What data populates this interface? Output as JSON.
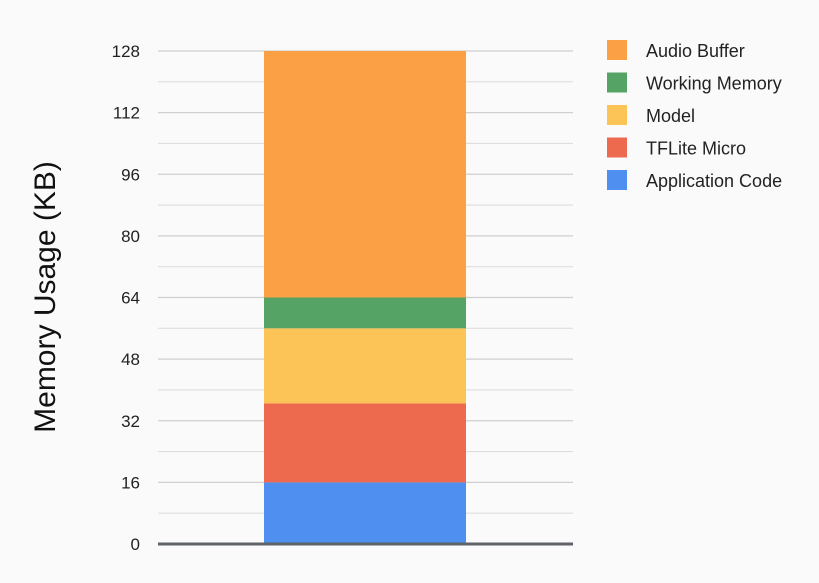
{
  "chart_data": {
    "type": "bar",
    "stacked": true,
    "title": "",
    "xlabel": "",
    "ylabel": "Memory Usage (KB)",
    "ylim": [
      0,
      128
    ],
    "yticks": [
      0,
      16,
      32,
      48,
      64,
      80,
      96,
      112,
      128
    ],
    "grid": true,
    "legend_position": "top-right",
    "categories": [
      ""
    ],
    "series": [
      {
        "name": "Application Code",
        "values": [
          16
        ],
        "color": "#4e8ff0"
      },
      {
        "name": "TFLite Micro",
        "values": [
          20.5
        ],
        "color": "#ee6a4f"
      },
      {
        "name": "Model",
        "values": [
          19.5
        ],
        "color": "#fcc356"
      },
      {
        "name": "Working Memory",
        "values": [
          8
        ],
        "color": "#55a465"
      },
      {
        "name": "Audio Buffer",
        "values": [
          64
        ],
        "color": "#fba044"
      }
    ],
    "legend_order": [
      "Audio Buffer",
      "Working Memory",
      "Model",
      "TFLite Micro",
      "Application Code"
    ]
  }
}
